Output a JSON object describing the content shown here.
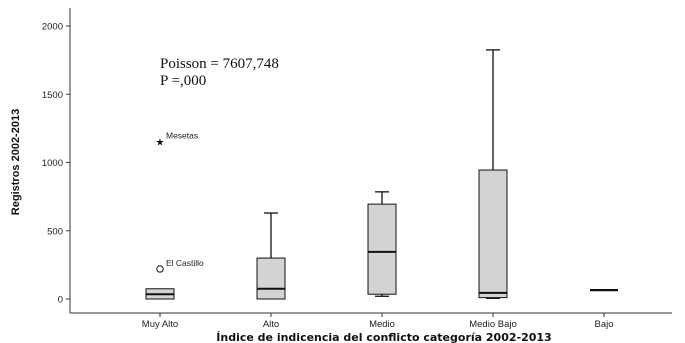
{
  "chart_data": {
    "type": "box",
    "xlabel": "Índice de indicencia del conflicto categoría 2002-2013",
    "ylabel": "Registros 2002-2013",
    "ylim": [
      -100,
      2080
    ],
    "yticks": [
      0,
      500,
      1000,
      1500,
      2000
    ],
    "grid": false,
    "categories": [
      "Muy Alto",
      "Alto",
      "Medio",
      "Medio Bajo",
      "Bajo"
    ],
    "boxes": [
      {
        "category": "Muy Alto",
        "whisker_low": 0,
        "q1": 0,
        "median": 35,
        "q3": 75,
        "whisker_high": 75
      },
      {
        "category": "Alto",
        "whisker_low": 0,
        "q1": 0,
        "median": 75,
        "q3": 300,
        "whisker_high": 630
      },
      {
        "category": "Medio",
        "whisker_low": 20,
        "q1": 35,
        "median": 345,
        "q3": 695,
        "whisker_high": 785
      },
      {
        "category": "Medio Bajo",
        "whisker_low": 5,
        "q1": 10,
        "median": 45,
        "q3": 945,
        "whisker_high": 1825
      },
      {
        "category": "Bajo",
        "whisker_low": 65,
        "q1": 65,
        "median": 65,
        "q3": 65,
        "whisker_high": 65
      }
    ],
    "outliers": [
      {
        "category": "Muy Alto",
        "value": 1155,
        "marker": "star",
        "label": "Mesetas"
      },
      {
        "category": "Muy Alto",
        "value": 220,
        "marker": "circle",
        "label": "El Castillo"
      }
    ],
    "annotations": [
      "Poisson = 7607,748",
      "P =,000"
    ]
  }
}
